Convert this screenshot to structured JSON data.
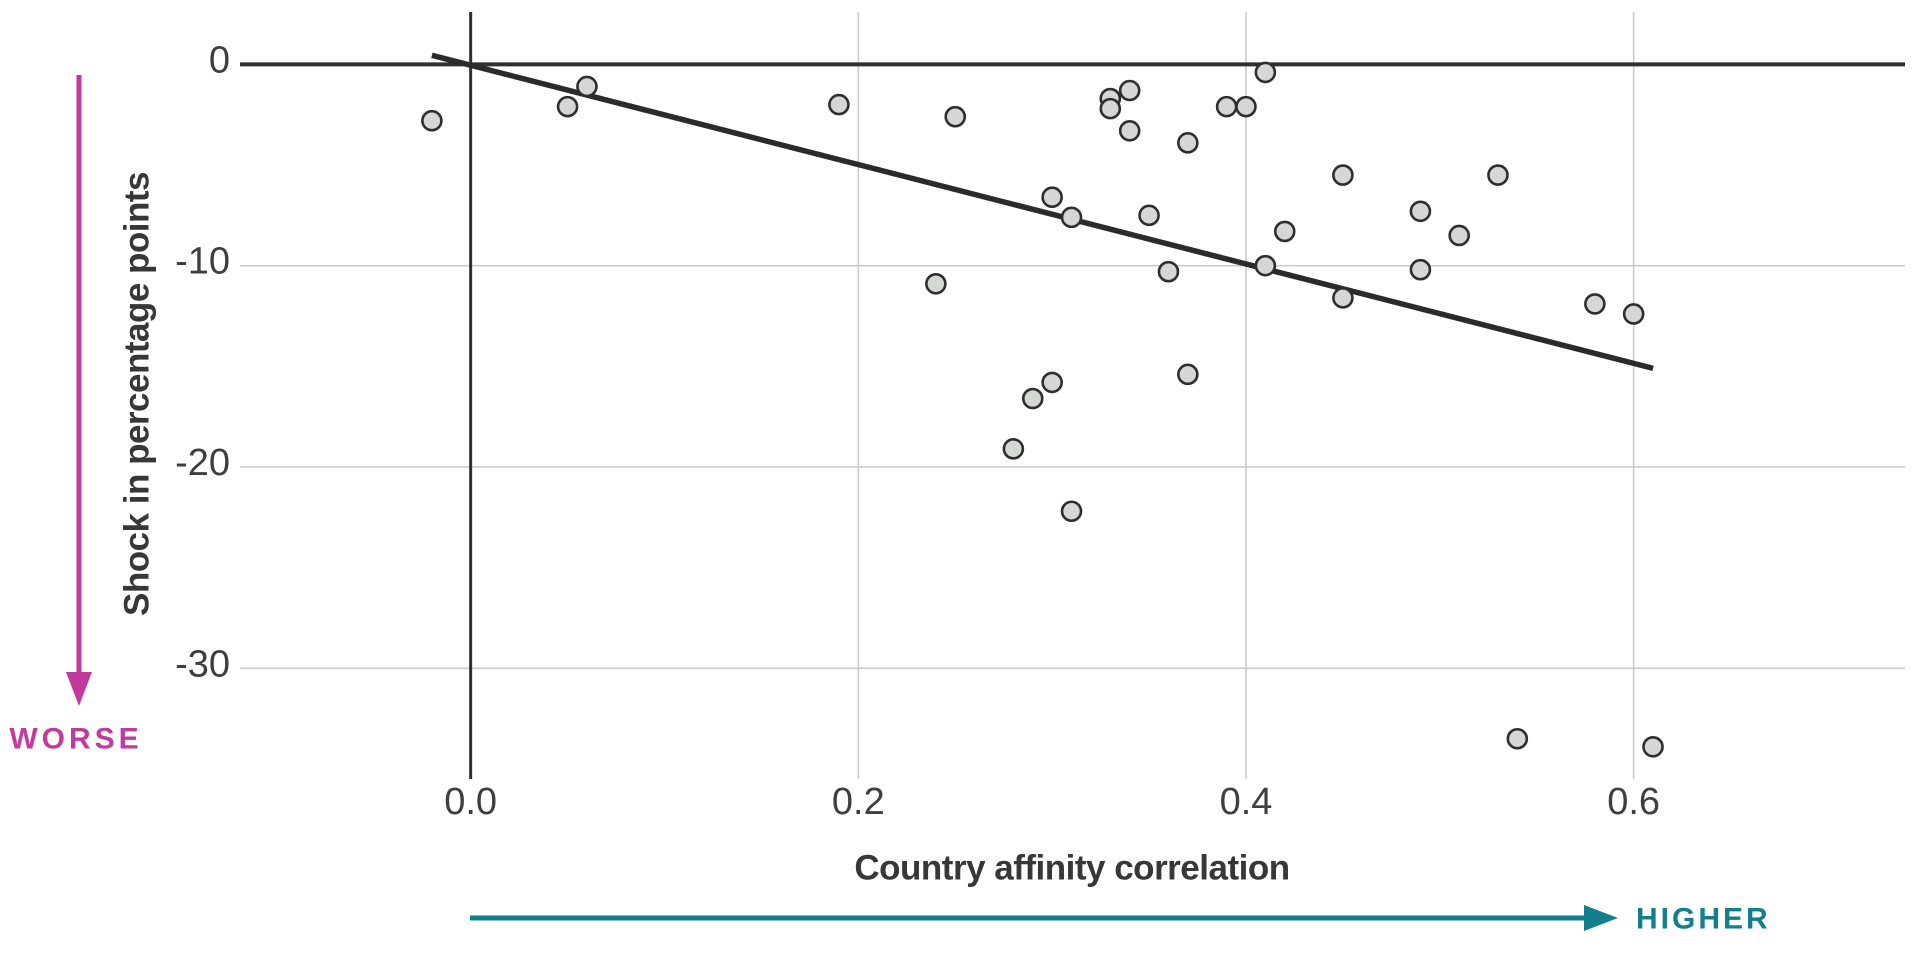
{
  "figure": {
    "background": "#ffffff"
  },
  "chart_data": {
    "type": "scatter",
    "title": "",
    "xlabel": "Country affinity correlation",
    "ylabel": "Shock in percentage points",
    "grid": true,
    "legend": "none",
    "xlim": [
      -0.119,
      0.74
    ],
    "ylim": [
      -35.5,
      2.6
    ],
    "x_ticks": [
      {
        "value": 0.0,
        "label": "0.0"
      },
      {
        "value": 0.2,
        "label": "0.2"
      },
      {
        "value": 0.4,
        "label": "0.4"
      },
      {
        "value": 0.6,
        "label": "0.6"
      }
    ],
    "y_ticks": [
      {
        "value": 0,
        "label": "0"
      },
      {
        "value": -10,
        "label": "-10"
      },
      {
        "value": -20,
        "label": "-20"
      },
      {
        "value": -30,
        "label": "-30"
      }
    ],
    "points": [
      [
        -0.02,
        -2.8
      ],
      [
        0.05,
        -2.1
      ],
      [
        0.06,
        -1.1
      ],
      [
        0.19,
        -2.0
      ],
      [
        0.24,
        -10.9
      ],
      [
        0.25,
        -2.6
      ],
      [
        0.28,
        -19.1
      ],
      [
        0.29,
        -16.6
      ],
      [
        0.3,
        -15.8
      ],
      [
        0.3,
        -6.6
      ],
      [
        0.31,
        -7.6
      ],
      [
        0.31,
        -22.2
      ],
      [
        0.33,
        -1.7
      ],
      [
        0.33,
        -2.2
      ],
      [
        0.34,
        -1.3
      ],
      [
        0.34,
        -3.3
      ],
      [
        0.35,
        -7.5
      ],
      [
        0.36,
        -10.3
      ],
      [
        0.37,
        -3.9
      ],
      [
        0.37,
        -15.4
      ],
      [
        0.39,
        -2.1
      ],
      [
        0.4,
        -2.1
      ],
      [
        0.41,
        -0.4
      ],
      [
        0.41,
        -10.0
      ],
      [
        0.42,
        -8.3
      ],
      [
        0.45,
        -5.5
      ],
      [
        0.45,
        -11.6
      ],
      [
        0.49,
        -7.3
      ],
      [
        0.49,
        -10.2
      ],
      [
        0.51,
        -8.5
      ],
      [
        0.53,
        -5.5
      ],
      [
        0.54,
        -33.5
      ],
      [
        0.58,
        -11.9
      ],
      [
        0.6,
        -12.4
      ],
      [
        0.61,
        -33.9
      ]
    ],
    "trend_line": {
      "x1": -0.02,
      "y1": 0.45,
      "x2": 0.61,
      "y2": -15.1
    },
    "annotations": {
      "worse": {
        "label": "WORSE",
        "direction": "down",
        "color": "#c23a9e"
      },
      "higher": {
        "label": "HIGHER",
        "direction": "right",
        "color": "#12808c"
      }
    },
    "colors": {
      "point_fill": "#d5d7d5",
      "point_stroke": "#2e2e2e",
      "trend": "#2b2b2b",
      "axis": "#2f2f2f",
      "grid": "#cbcbcb",
      "tick_text": "#3e3e3e",
      "title_text": "#373737"
    }
  }
}
